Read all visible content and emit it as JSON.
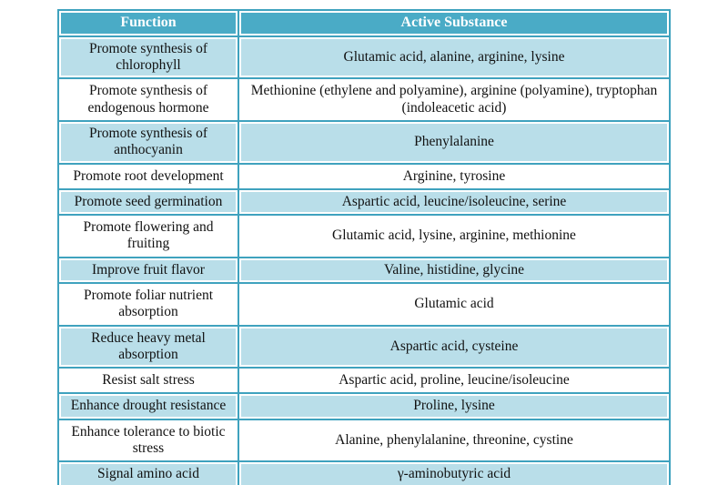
{
  "colors": {
    "header_bg": "#4aabc6",
    "grid": "#3fa2be",
    "band_bg": "#b9dee9",
    "plain_bg": "#ffffff",
    "header_text": "#ffffff",
    "body_text": "#111111",
    "page_bg": "#ffffff"
  },
  "table": {
    "columns": {
      "function": "Function",
      "substance": "Active Substance"
    },
    "rows": [
      {
        "function": "Promote synthesis of chlorophyll",
        "substance": "Glutamic acid, alanine, arginine, lysine"
      },
      {
        "function": "Promote synthesis of endogenous hormone",
        "substance": "Methionine (ethylene and polyamine), arginine (polyamine), tryptophan (indoleacetic acid)"
      },
      {
        "function": "Promote synthesis of anthocyanin",
        "substance": "Phenylalanine"
      },
      {
        "function": "Promote root development",
        "substance": "Arginine, tyrosine"
      },
      {
        "function": "Promote seed germination",
        "substance": "Aspartic acid, leucine/isoleucine, serine"
      },
      {
        "function": "Promote flowering and fruiting",
        "substance": "Glutamic acid, lysine, arginine, methionine"
      },
      {
        "function": "Improve fruit flavor",
        "substance": "Valine, histidine, glycine"
      },
      {
        "function": "Promote foliar nutrient absorption",
        "substance": "Glutamic acid"
      },
      {
        "function": "Reduce heavy metal absorption",
        "substance": "Aspartic acid, cysteine"
      },
      {
        "function": "Resist salt stress",
        "substance": "Aspartic acid, proline, leucine/isoleucine"
      },
      {
        "function": "Enhance drought resistance",
        "substance": "Proline, lysine"
      },
      {
        "function": "Enhance tolerance to biotic stress",
        "substance": "Alanine, phenylalanine, threonine, cystine"
      },
      {
        "function": "Signal amino acid",
        "substance": "γ-aminobutyric acid"
      }
    ]
  }
}
